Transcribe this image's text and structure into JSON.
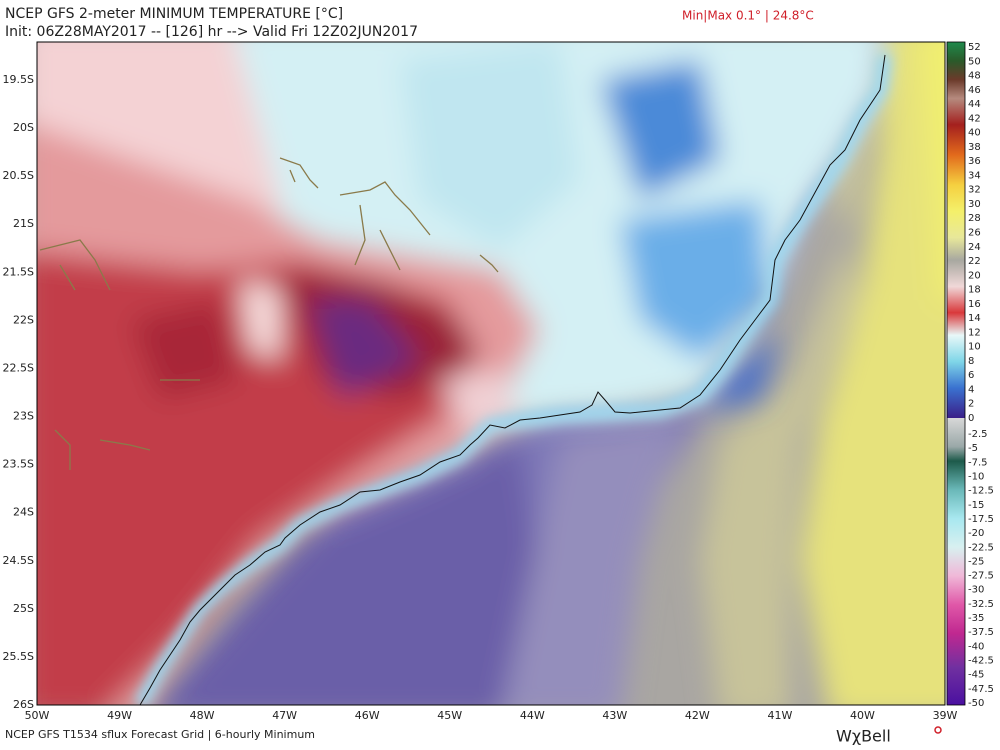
{
  "header": {
    "title": "NCEP GFS 2-meter MINIMUM TEMPERATURE [°C]",
    "subtitle": "Init: 06Z28MAY2017 -- [126] hr --> Valid Fri 12Z02JUN2017",
    "minmax": "Min|Max 0.1° | 24.8°C"
  },
  "map": {
    "latitude_labels": [
      "19.5S",
      "20S",
      "20.5S",
      "21S",
      "21.5S",
      "22S",
      "22.5S",
      "23S",
      "23.5S",
      "24S",
      "24.5S",
      "25S",
      "25.5S",
      "26S"
    ],
    "longitude_labels": [
      "50W",
      "49W",
      "48W",
      "47W",
      "46W",
      "45W",
      "44W",
      "43W",
      "42W",
      "41W",
      "40W",
      "39W"
    ]
  },
  "colorbar": {
    "labels": [
      "52",
      "50",
      "48",
      "46",
      "44",
      "42",
      "40",
      "38",
      "36",
      "34",
      "32",
      "30",
      "28",
      "26",
      "24",
      "22",
      "20",
      "18",
      "16",
      "14",
      "12",
      "10",
      "8",
      "6",
      "4",
      "2",
      "0",
      "-2.5",
      "-5",
      "-7.5",
      "-10",
      "-12.5",
      "-15",
      "-17.5",
      "-20",
      "-22.5",
      "-25",
      "-27.5",
      "-30",
      "-32.5",
      "-35",
      "-37.5",
      "-40",
      "-42.5",
      "-45",
      "-47.5",
      "-50"
    ]
  },
  "footer": {
    "source": "NCEP GFS T1534 sflux Forecast Grid | 6-hourly Minimum",
    "brand": "WχBell"
  }
}
